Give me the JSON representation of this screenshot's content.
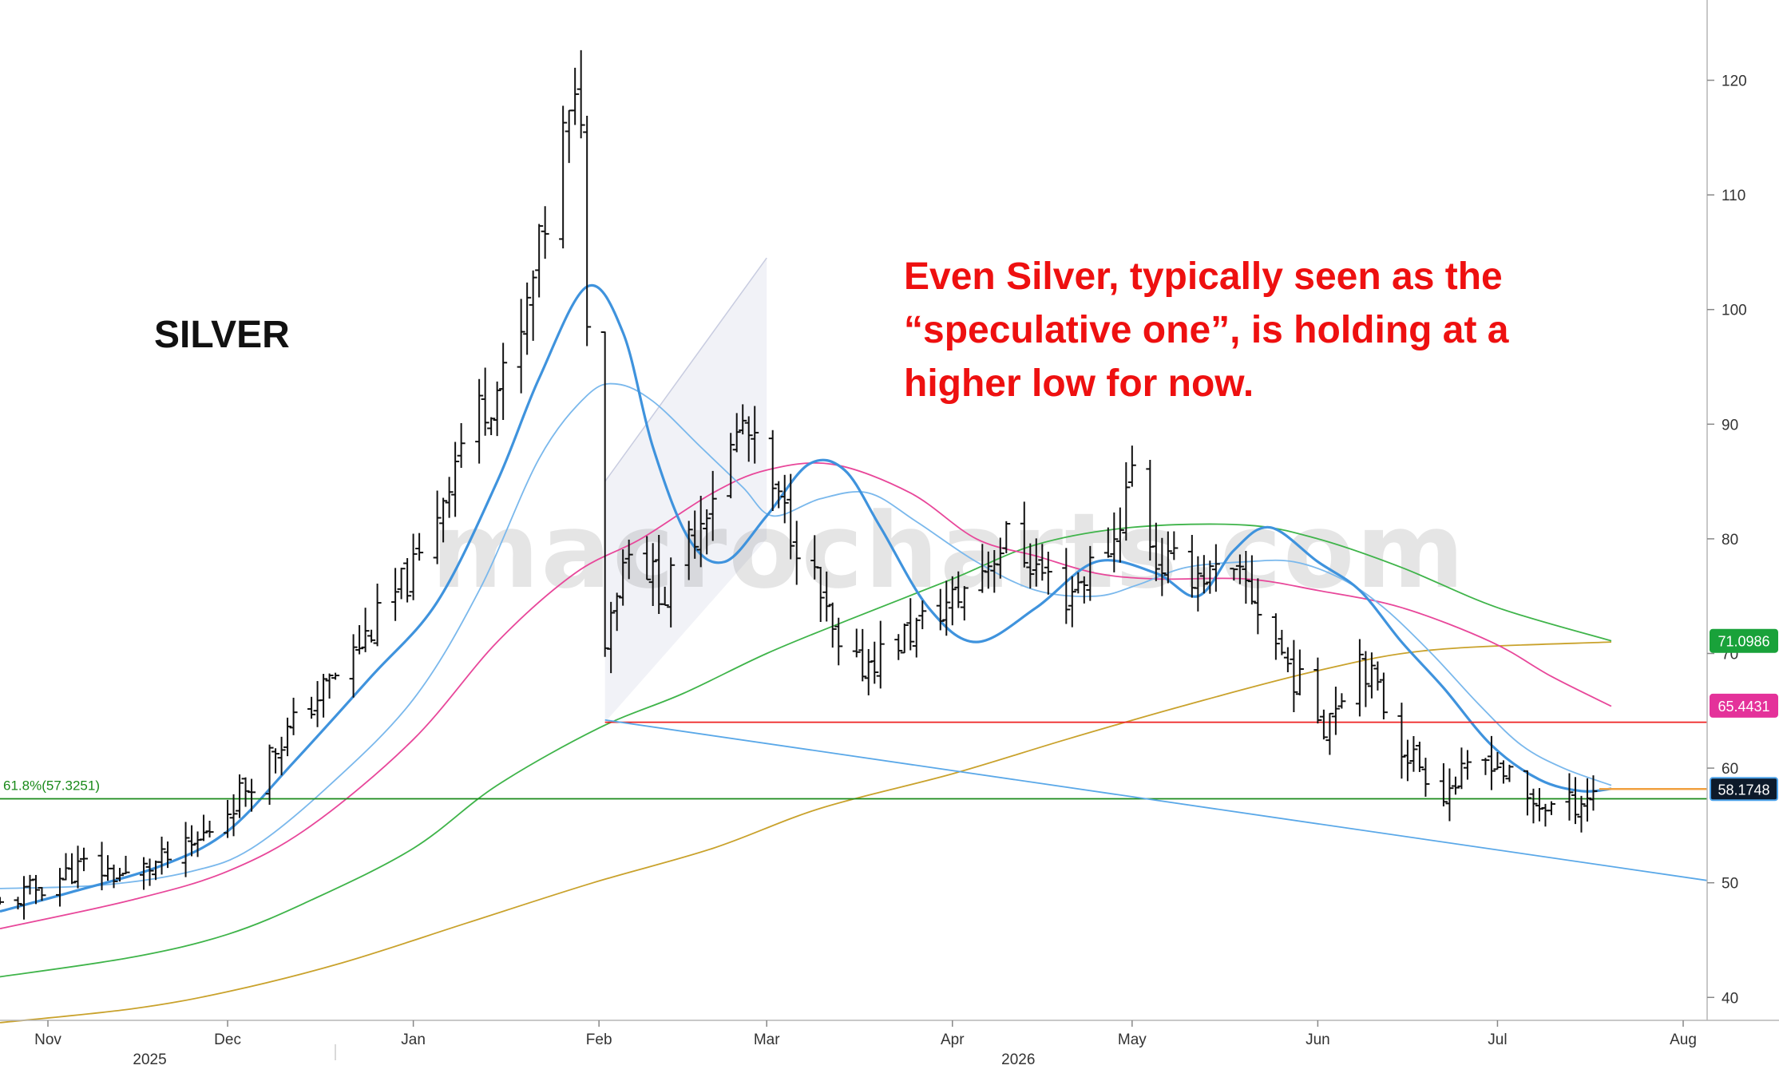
{
  "chart_data": {
    "type": "bar",
    "title": "SILVER",
    "annotation": [
      "Even Silver, typically seen as the",
      "“speculative one”, is holding at a",
      "higher low for now."
    ],
    "watermark": "macrocharts.com",
    "xlabel": "",
    "ylabel": "",
    "ylim": [
      38,
      127
    ],
    "y_ticks": [
      40,
      50,
      60,
      70,
      80,
      90,
      100,
      110,
      120
    ],
    "y_tick_labels": [
      "40",
      "50",
      "60",
      "70",
      "80",
      "90",
      "100",
      "110",
      "120"
    ],
    "x_range": [
      "2025-10-24",
      "2026-08-05"
    ],
    "x_ticks": [
      {
        "date": "2025-11-01",
        "label": "Nov"
      },
      {
        "date": "2025-12-01",
        "label": "Dec"
      },
      {
        "date": "2026-01-01",
        "label": "Jan"
      },
      {
        "date": "2026-02-01",
        "label": "Feb"
      },
      {
        "date": "2026-03-01",
        "label": "Mar"
      },
      {
        "date": "2026-04-01",
        "label": "Apr"
      },
      {
        "date": "2026-05-01",
        "label": "May"
      },
      {
        "date": "2026-06-01",
        "label": "Jun"
      },
      {
        "date": "2026-07-01",
        "label": "Jul"
      },
      {
        "date": "2026-08-01",
        "label": "Aug"
      }
    ],
    "year_labels": [
      {
        "date": "2025-11-18",
        "label": "2025"
      },
      {
        "date": "2026-04-12",
        "label": "2026"
      }
    ],
    "price_anchors": [
      {
        "date": "2025-10-24",
        "price": 48.0
      },
      {
        "date": "2025-11-07",
        "price": 51.5
      },
      {
        "date": "2025-11-14",
        "price": 50.5
      },
      {
        "date": "2025-11-25",
        "price": 53.0
      },
      {
        "date": "2025-12-01",
        "price": 56.5
      },
      {
        "date": "2025-12-10",
        "price": 62.5
      },
      {
        "date": "2025-12-22",
        "price": 70.0
      },
      {
        "date": "2026-01-02",
        "price": 78.0
      },
      {
        "date": "2026-01-10",
        "price": 90.0
      },
      {
        "date": "2026-01-18",
        "price": 95.0
      },
      {
        "date": "2026-01-26",
        "price": 115.0
      },
      {
        "date": "2026-01-29",
        "price": 118.0
      },
      {
        "date": "2026-01-31",
        "price": 78.0
      },
      {
        "date": "2026-02-02",
        "price": 72.0
      },
      {
        "date": "2026-02-06",
        "price": 80.0
      },
      {
        "date": "2026-02-12",
        "price": 75.0
      },
      {
        "date": "2026-02-18",
        "price": 82.0
      },
      {
        "date": "2026-02-25",
        "price": 90.0
      },
      {
        "date": "2026-03-01",
        "price": 85.0
      },
      {
        "date": "2026-03-08",
        "price": 78.0
      },
      {
        "date": "2026-03-14",
        "price": 68.0
      },
      {
        "date": "2026-03-20",
        "price": 70.0
      },
      {
        "date": "2026-04-02",
        "price": 75.0
      },
      {
        "date": "2026-04-10",
        "price": 80.0
      },
      {
        "date": "2026-04-20",
        "price": 75.0
      },
      {
        "date": "2026-04-28",
        "price": 80.0
      },
      {
        "date": "2026-05-01",
        "price": 86.0
      },
      {
        "date": "2026-05-05",
        "price": 78.0
      },
      {
        "date": "2026-05-20",
        "price": 76.0
      },
      {
        "date": "2026-05-28",
        "price": 68.0
      },
      {
        "date": "2026-06-02",
        "price": 64.0
      },
      {
        "date": "2026-06-08",
        "price": 70.0
      },
      {
        "date": "2026-06-15",
        "price": 62.0
      },
      {
        "date": "2026-06-22",
        "price": 58.0
      },
      {
        "date": "2026-06-30",
        "price": 61.0
      },
      {
        "date": "2026-07-06",
        "price": 57.0
      },
      {
        "date": "2026-07-12",
        "price": 56.5
      },
      {
        "date": "2026-07-18",
        "price": 58.2
      }
    ],
    "lines": [
      {
        "name": "fib",
        "kind": "horizontal",
        "value": 57.3251,
        "color": "#1a8a1a",
        "label": "61.8%(57.3251)"
      },
      {
        "name": "support",
        "kind": "horizontal",
        "value": 64.0,
        "color": "#ee2222",
        "from": "2026-02-02",
        "to": "2026-08-05"
      },
      {
        "name": "last-price",
        "kind": "horizontal",
        "value": 58.1748,
        "color": "#f0a040",
        "from": "2026-07-18",
        "to": "2026-08-05"
      },
      {
        "name": "trendline",
        "kind": "segment",
        "from": [
          "2026-02-02",
          64.2
        ],
        "to": [
          "2026-08-05",
          50.2
        ],
        "color": "#5aa8e8"
      }
    ],
    "channel": {
      "lower": [
        [
          "2026-02-02",
          64.0
        ],
        [
          "2026-03-01",
          80.0
        ]
      ],
      "upper": [
        [
          "2026-02-02",
          85.0
        ],
        [
          "2026-03-01",
          104.5
        ]
      ]
    },
    "moving_averages": [
      {
        "name": "ma-fast",
        "color": "#3f93dd",
        "width": 3.2,
        "points": [
          [
            "2025-10-24",
            47.5
          ],
          [
            "2025-11-05",
            49.2
          ],
          [
            "2025-11-20",
            51.5
          ],
          [
            "2025-12-01",
            54.5
          ],
          [
            "2025-12-12",
            60.5
          ],
          [
            "2025-12-25",
            68.0
          ],
          [
            "2026-01-05",
            74.5
          ],
          [
            "2026-01-15",
            85.0
          ],
          [
            "2026-01-22",
            94.0
          ],
          [
            "2026-01-30",
            102.0
          ],
          [
            "2026-02-05",
            98.0
          ],
          [
            "2026-02-10",
            88.0
          ],
          [
            "2026-02-16",
            80.0
          ],
          [
            "2026-02-22",
            78.0
          ],
          [
            "2026-03-01",
            82.0
          ],
          [
            "2026-03-08",
            86.5
          ],
          [
            "2026-03-14",
            86.0
          ],
          [
            "2026-03-20",
            81.0
          ],
          [
            "2026-03-28",
            74.0
          ],
          [
            "2026-04-05",
            71.0
          ],
          [
            "2026-04-15",
            74.0
          ],
          [
            "2026-04-25",
            78.0
          ],
          [
            "2026-05-05",
            77.0
          ],
          [
            "2026-05-12",
            75.0
          ],
          [
            "2026-05-18",
            79.0
          ],
          [
            "2026-05-24",
            81.0
          ],
          [
            "2026-06-01",
            78.0
          ],
          [
            "2026-06-08",
            75.5
          ],
          [
            "2026-06-15",
            71.0
          ],
          [
            "2026-06-22",
            67.0
          ],
          [
            "2026-06-30",
            62.0
          ],
          [
            "2026-07-08",
            59.0
          ],
          [
            "2026-07-15",
            58.0
          ],
          [
            "2026-07-20",
            58.2
          ]
        ]
      },
      {
        "name": "ma-slow",
        "color": "#7ab8ec",
        "width": 1.8,
        "points": [
          [
            "2025-10-24",
            49.5
          ],
          [
            "2025-11-10",
            49.8
          ],
          [
            "2025-11-25",
            51.0
          ],
          [
            "2025-12-05",
            53.0
          ],
          [
            "2025-12-18",
            58.5
          ],
          [
            "2026-01-01",
            66.0
          ],
          [
            "2026-01-12",
            75.5
          ],
          [
            "2026-01-22",
            87.0
          ],
          [
            "2026-01-30",
            92.5
          ],
          [
            "2026-02-04",
            93.5
          ],
          [
            "2026-02-10",
            92.0
          ],
          [
            "2026-02-18",
            88.0
          ],
          [
            "2026-02-25",
            84.5
          ],
          [
            "2026-03-02",
            82.0
          ],
          [
            "2026-03-10",
            83.5
          ],
          [
            "2026-03-18",
            84.0
          ],
          [
            "2026-03-26",
            81.5
          ],
          [
            "2026-04-05",
            78.0
          ],
          [
            "2026-04-15",
            75.5
          ],
          [
            "2026-04-25",
            75.0
          ],
          [
            "2026-05-02",
            76.0
          ],
          [
            "2026-05-10",
            77.5
          ],
          [
            "2026-05-20",
            78.0
          ],
          [
            "2026-05-28",
            78.0
          ],
          [
            "2026-06-05",
            76.5
          ],
          [
            "2026-06-12",
            74.0
          ],
          [
            "2026-06-20",
            70.0
          ],
          [
            "2026-06-28",
            65.5
          ],
          [
            "2026-07-05",
            62.0
          ],
          [
            "2026-07-12",
            60.0
          ],
          [
            "2026-07-20",
            58.5
          ]
        ]
      },
      {
        "name": "ma-pink",
        "color": "#e8479a",
        "width": 1.8,
        "points": [
          [
            "2025-10-24",
            46.0
          ],
          [
            "2025-11-15",
            48.5
          ],
          [
            "2025-12-01",
            51.0
          ],
          [
            "2025-12-15",
            55.0
          ],
          [
            "2026-01-01",
            62.5
          ],
          [
            "2026-01-15",
            71.0
          ],
          [
            "2026-01-28",
            77.0
          ],
          [
            "2026-02-08",
            80.0
          ],
          [
            "2026-02-20",
            84.0
          ],
          [
            "2026-03-01",
            86.0
          ],
          [
            "2026-03-12",
            86.5
          ],
          [
            "2026-03-25",
            84.0
          ],
          [
            "2026-04-05",
            80.0
          ],
          [
            "2026-04-15",
            78.5
          ],
          [
            "2026-04-25",
            77.0
          ],
          [
            "2026-05-05",
            76.5
          ],
          [
            "2026-05-20",
            76.5
          ],
          [
            "2026-06-01",
            75.5
          ],
          [
            "2026-06-15",
            74.0
          ],
          [
            "2026-06-30",
            71.0
          ],
          [
            "2026-07-10",
            68.0
          ],
          [
            "2026-07-20",
            65.4
          ]
        ]
      },
      {
        "name": "ma-green",
        "color": "#3fb44a",
        "width": 1.8,
        "points": [
          [
            "2025-10-24",
            41.8
          ],
          [
            "2025-11-15",
            43.5
          ],
          [
            "2025-12-01",
            45.5
          ],
          [
            "2025-12-15",
            48.5
          ],
          [
            "2026-01-01",
            53.0
          ],
          [
            "2026-01-15",
            58.5
          ],
          [
            "2026-02-01",
            63.5
          ],
          [
            "2026-02-15",
            66.5
          ],
          [
            "2026-03-01",
            70.0
          ],
          [
            "2026-03-15",
            73.0
          ],
          [
            "2026-04-01",
            76.5
          ],
          [
            "2026-04-15",
            79.5
          ],
          [
            "2026-05-01",
            81.0
          ],
          [
            "2026-05-20",
            81.2
          ],
          [
            "2026-06-01",
            80.0
          ],
          [
            "2026-06-15",
            77.5
          ],
          [
            "2026-07-01",
            74.0
          ],
          [
            "2026-07-20",
            71.1
          ]
        ]
      },
      {
        "name": "ma-gold",
        "color": "#c9a22c",
        "width": 1.8,
        "points": [
          [
            "2025-10-24",
            37.8
          ],
          [
            "2025-11-15",
            39.0
          ],
          [
            "2025-12-01",
            40.5
          ],
          [
            "2025-12-20",
            43.0
          ],
          [
            "2026-01-10",
            46.5
          ],
          [
            "2026-01-31",
            50.0
          ],
          [
            "2026-02-20",
            53.0
          ],
          [
            "2026-03-10",
            56.5
          ],
          [
            "2026-04-01",
            59.5
          ],
          [
            "2026-04-20",
            62.5
          ],
          [
            "2026-05-10",
            65.5
          ],
          [
            "2026-06-01",
            68.5
          ],
          [
            "2026-06-20",
            70.3
          ],
          [
            "2026-07-20",
            71.0
          ]
        ]
      }
    ],
    "value_badges": [
      {
        "value": 71.0986,
        "label": "71.0986",
        "bg": "#19a23a",
        "fg": "#ffffff"
      },
      {
        "value": 65.4431,
        "label": "65.4431",
        "bg": "#e4329a",
        "fg": "#ffffff"
      },
      {
        "value": 58.1748,
        "label": "58.1748",
        "bg": "#0d1a2a",
        "fg": "#ffffff",
        "border": "#4da3ea"
      }
    ]
  }
}
